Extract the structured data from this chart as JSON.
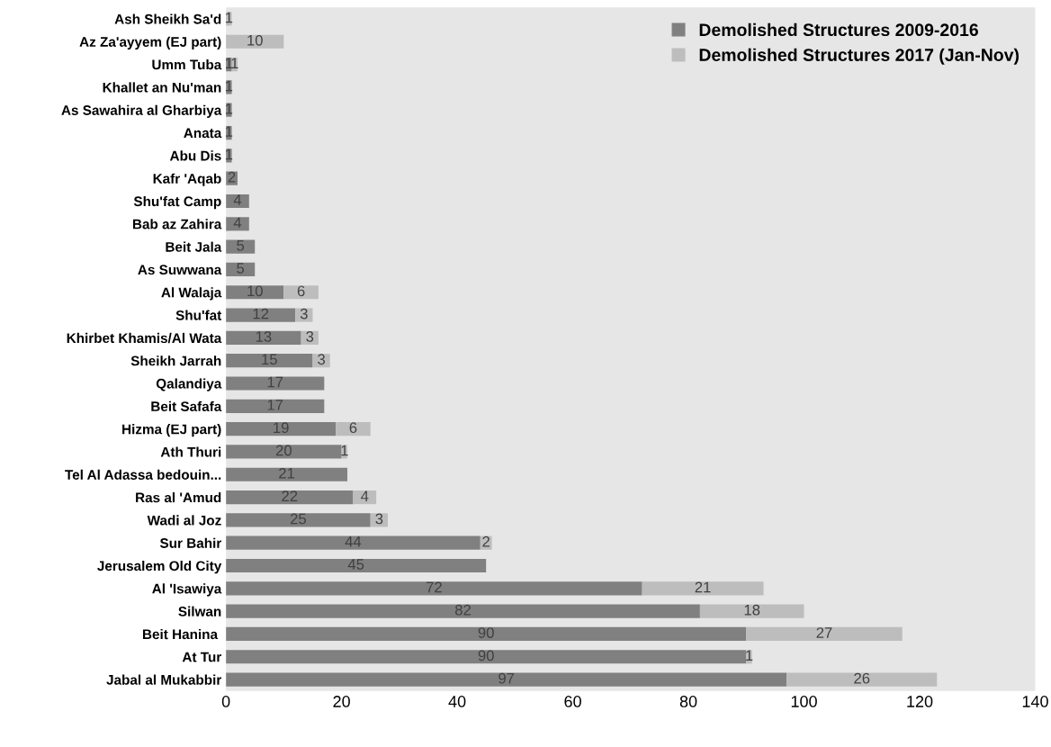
{
  "chart_data": {
    "type": "bar",
    "orientation": "horizontal",
    "stacked": true,
    "data_labels": true,
    "legend": "top right",
    "grid": false,
    "categories": [
      "Ash Sheikh Sa'd",
      "Az Za'ayyem (EJ part)",
      "Umm Tuba",
      "Khallet an Nu'man",
      "As Sawahira al Gharbiya",
      "Anata",
      "Abu Dis",
      "Kafr 'Aqab",
      "Shu'fat Camp",
      "Bab az Zahira",
      "Beit Jala",
      "As Suwwana",
      "Al Walaja",
      "Shu'fat",
      "Khirbet Khamis/Al Wata",
      "Sheikh Jarrah",
      "Qalandiya",
      "Beit Safafa",
      "Hizma (EJ part)",
      "Ath Thuri",
      "Tel Al Adassa bedouin...",
      "Ras al 'Amud",
      "Wadi al Joz",
      "Sur Bahir",
      "Jerusalem Old City",
      "Al 'Isawiya",
      "Silwan",
      "Beit Hanina ",
      "At Tur",
      "Jabal al Mukabbir"
    ],
    "series": [
      {
        "name": "Demolished Structures 2009-2016",
        "color": "#808080",
        "values": [
          null,
          null,
          1,
          1,
          1,
          1,
          1,
          2,
          4,
          4,
          5,
          5,
          10,
          12,
          13,
          15,
          17,
          17,
          19,
          20,
          21,
          22,
          25,
          44,
          45,
          72,
          82,
          90,
          90,
          97
        ]
      },
      {
        "name": "Demolished Structures 2017 (Jan-Nov)",
        "color": "#bdbdbd",
        "values": [
          1,
          10,
          1,
          null,
          null,
          null,
          null,
          null,
          null,
          null,
          null,
          null,
          6,
          3,
          3,
          3,
          null,
          null,
          6,
          1,
          null,
          4,
          3,
          2,
          null,
          21,
          18,
          27,
          1,
          26
        ]
      }
    ],
    "xlim": [
      0,
      140
    ],
    "xticks": [
      0,
      20,
      40,
      60,
      80,
      100,
      120,
      140
    ]
  }
}
